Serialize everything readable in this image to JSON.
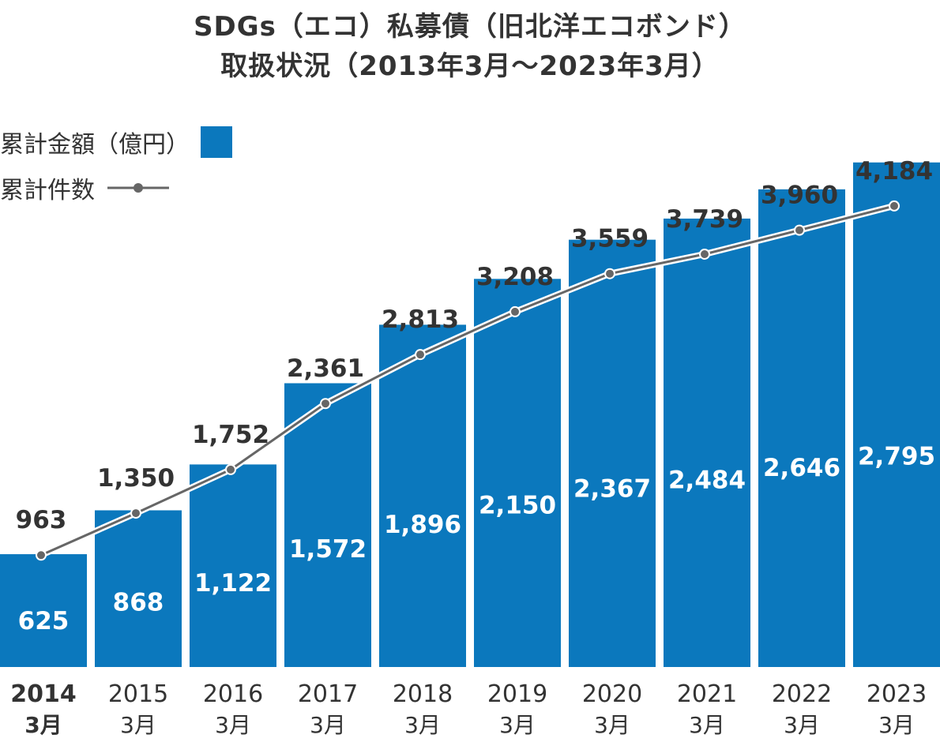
{
  "chart_data": {
    "type": "bar",
    "title_lines": [
      "SDGs（エコ）私募債（旧北洋エコボンド）",
      "取扱状況（2013年3月～2023年3月）"
    ],
    "categories": [
      [
        "2014",
        "3月"
      ],
      [
        "2015",
        "3月"
      ],
      [
        "2016",
        "3月"
      ],
      [
        "2017",
        "3月"
      ],
      [
        "2018",
        "3月"
      ],
      [
        "2019",
        "3月"
      ],
      [
        "2020",
        "3月"
      ],
      [
        "2021",
        "3月"
      ],
      [
        "2022",
        "3月"
      ],
      [
        "2023",
        "3月"
      ]
    ],
    "series": [
      {
        "name": "累計金額（億円）",
        "type": "bar",
        "values": [
          625,
          868,
          1122,
          1572,
          1896,
          2150,
          2367,
          2484,
          2646,
          2795
        ],
        "labels": [
          "625",
          "868",
          "1,122",
          "1,572",
          "1,896",
          "2,150",
          "2,367",
          "2,484",
          "2,646",
          "2,795"
        ],
        "color": "#0b78bd"
      },
      {
        "name": "累計件数",
        "type": "line",
        "values": [
          963,
          1350,
          1752,
          2361,
          2813,
          3208,
          3559,
          3739,
          3960,
          4184
        ],
        "labels": [
          "963",
          "1,350",
          "1,752",
          "2,361",
          "2,813",
          "3,208",
          "3,559",
          "3,739",
          "3,960",
          "4,184"
        ],
        "color": "#666666"
      }
    ],
    "legend": "top-left",
    "grid": false
  }
}
